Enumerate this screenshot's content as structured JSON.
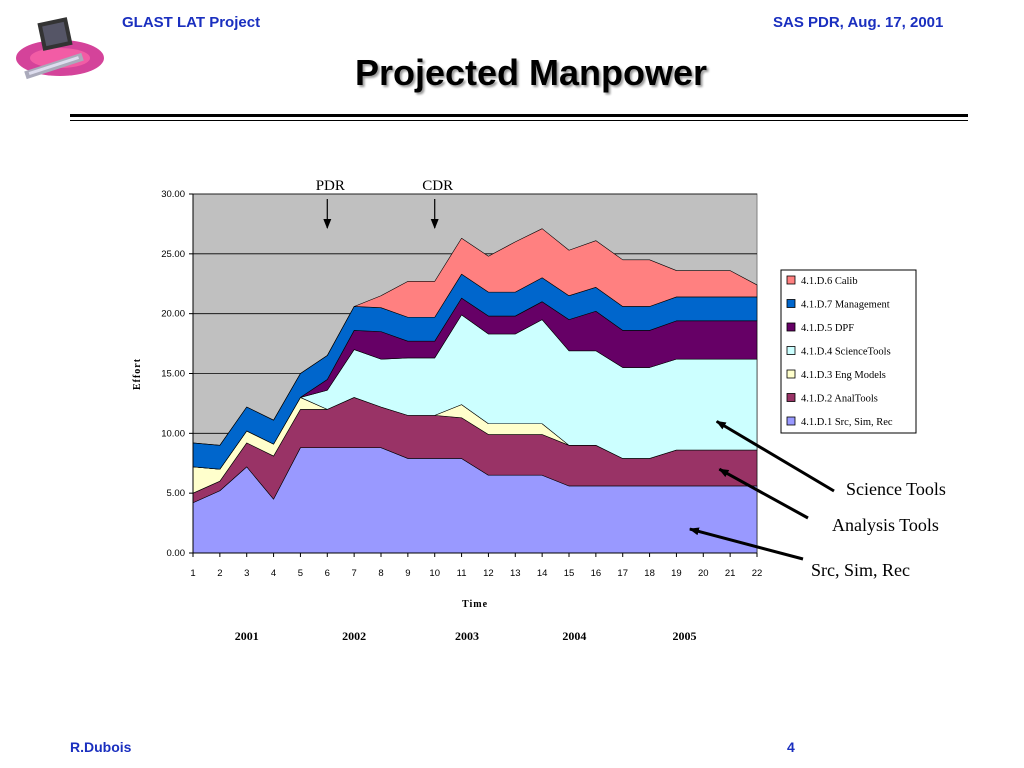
{
  "header": {
    "left": "GLAST LAT Project",
    "right": "SAS PDR, Aug. 17, 2001"
  },
  "slide_title": "Projected Manpower",
  "footer": {
    "author": "R.Dubois",
    "page": "4"
  },
  "colors": {
    "header_text": "#1a2fbf",
    "plot_bg": "#c0c0c0",
    "series": [
      "#9999ff",
      "#993366",
      "#ffffcc",
      "#ccffff",
      "#660066",
      "#0066cc",
      "#ff8080"
    ]
  },
  "chart_data": {
    "type": "area",
    "stacked": true,
    "x": [
      1,
      2,
      3,
      4,
      5,
      6,
      7,
      8,
      9,
      10,
      11,
      12,
      13,
      14,
      15,
      16,
      17,
      18,
      19,
      20,
      21,
      22
    ],
    "ylabel": "Effort",
    "xlabel": "Time",
    "ylim": [
      0,
      30
    ],
    "yticks": [
      "0.00",
      "5.00",
      "10.00",
      "15.00",
      "20.00",
      "25.00",
      "30.00"
    ],
    "grid": true,
    "legend_position": "right",
    "series": [
      {
        "name": "4.1.D.1 Src, Sim, Rec",
        "values": [
          4.2,
          5.2,
          7.2,
          4.5,
          8.8,
          8.8,
          8.8,
          8.8,
          7.9,
          7.9,
          7.9,
          6.5,
          6.5,
          6.5,
          5.6,
          5.6,
          5.6,
          5.6,
          5.6,
          5.6,
          5.6,
          5.6
        ]
      },
      {
        "name": "4.1.D.2 AnalTools",
        "values": [
          0.8,
          0.8,
          2.0,
          3.6,
          3.2,
          3.2,
          4.2,
          3.4,
          3.6,
          3.6,
          3.4,
          3.4,
          3.4,
          3.4,
          3.4,
          3.4,
          2.3,
          2.3,
          3.0,
          3.0,
          3.0,
          3.0
        ]
      },
      {
        "name": "4.1.D.3 Eng Models",
        "values": [
          2.2,
          1.0,
          1.0,
          1.0,
          1.0,
          0.0,
          0.0,
          0.0,
          0.0,
          0.0,
          1.1,
          0.9,
          0.9,
          0.9,
          0.0,
          0.0,
          0.0,
          0.0,
          0.0,
          0.0,
          0.0,
          0.0
        ]
      },
      {
        "name": "4.1.D.4 ScienceTools",
        "values": [
          0.0,
          0.0,
          0.0,
          0.0,
          0.0,
          1.6,
          4.0,
          4.0,
          4.8,
          4.8,
          7.5,
          7.5,
          7.5,
          8.7,
          7.9,
          7.9,
          7.6,
          7.6,
          7.6,
          7.6,
          7.6,
          7.6
        ]
      },
      {
        "name": "4.1.D.5 DPF",
        "values": [
          0.0,
          0.0,
          0.0,
          0.0,
          0.0,
          0.9,
          1.6,
          2.3,
          1.4,
          1.4,
          1.4,
          1.5,
          1.5,
          1.5,
          2.6,
          3.3,
          3.1,
          3.1,
          3.2,
          3.2,
          3.2,
          3.2
        ]
      },
      {
        "name": "4.1.D.7 Management",
        "values": [
          2.0,
          2.0,
          2.0,
          2.0,
          2.0,
          2.0,
          2.0,
          2.0,
          2.0,
          2.0,
          2.0,
          2.0,
          2.0,
          2.0,
          2.0,
          2.0,
          2.0,
          2.0,
          2.0,
          2.0,
          2.0,
          2.0
        ]
      },
      {
        "name": "4.1.D.6 Calib",
        "values": [
          0.0,
          0.0,
          0.0,
          0.0,
          0.0,
          0.0,
          0.0,
          1.0,
          3.0,
          3.0,
          3.0,
          3.0,
          4.2,
          4.1,
          3.8,
          3.9,
          3.9,
          3.9,
          2.2,
          2.2,
          2.2,
          1.0
        ]
      }
    ],
    "milestones": [
      {
        "label": "PDR",
        "x": 6
      },
      {
        "label": "CDR",
        "x": 10
      }
    ],
    "years": [
      {
        "label": "2001",
        "x": 3
      },
      {
        "label": "2002",
        "x": 7
      },
      {
        "label": "2003",
        "x": 11.2
      },
      {
        "label": "2004",
        "x": 15.2
      },
      {
        "label": "2005",
        "x": 19.3
      }
    ],
    "annotations": [
      {
        "text": "Science Tools",
        "target_x": 20.5,
        "target_y": 11
      },
      {
        "text": "Analysis Tools",
        "target_x": 20.6,
        "target_y": 7
      },
      {
        "text": "Src, Sim, Rec",
        "target_x": 19.5,
        "target_y": 2
      }
    ]
  }
}
